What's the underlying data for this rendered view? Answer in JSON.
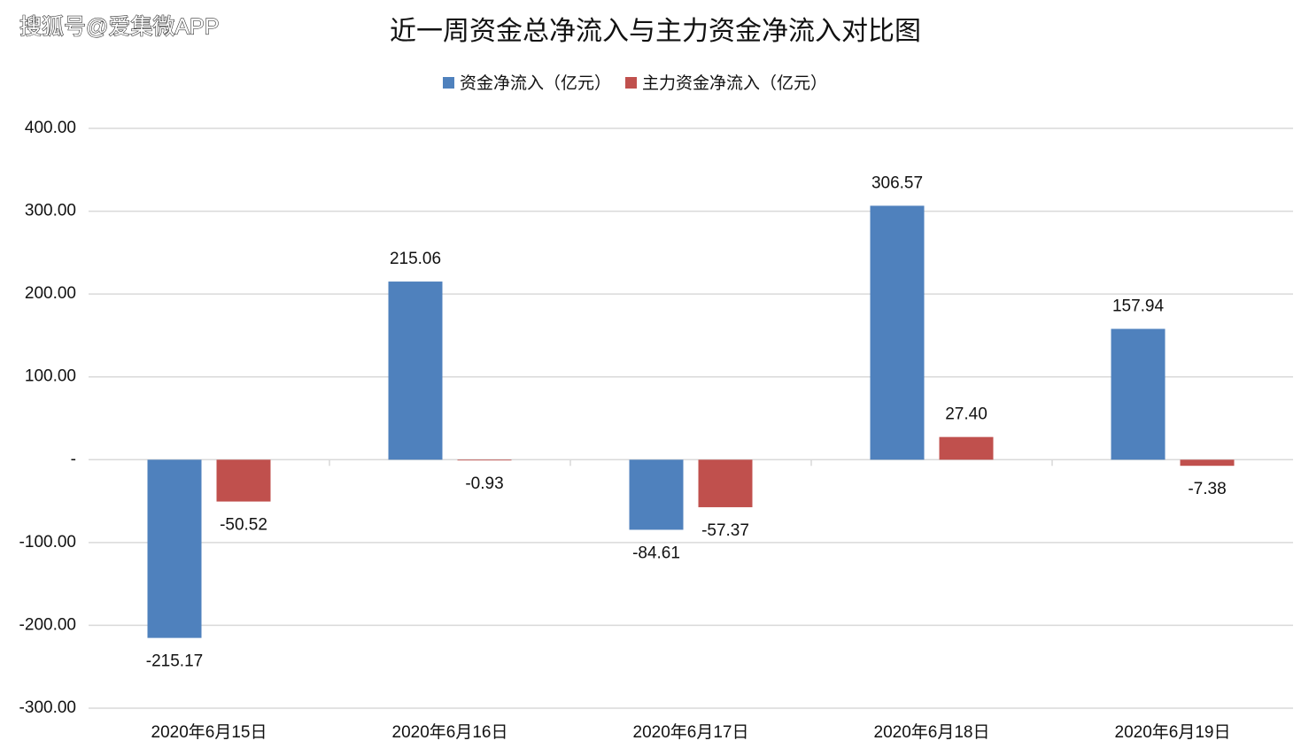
{
  "chart_data": {
    "type": "bar",
    "watermark": "搜狐号@爱集微APP",
    "title": "近一周资金总净流入与主力资金净流入对比图",
    "categories": [
      "2020年6月15日",
      "2020年6月16日",
      "2020年6月17日",
      "2020年6月18日",
      "2020年6月19日"
    ],
    "series": [
      {
        "name": "资金净流入（亿元）",
        "color": "#4f81bd",
        "values": [
          -215.17,
          215.06,
          -84.61,
          306.57,
          157.94
        ],
        "value_labels": [
          "-215.17",
          "215.06",
          "-84.61",
          "306.57",
          "157.94"
        ]
      },
      {
        "name": "主力资金净流入（亿元）",
        "color": "#c0504d",
        "values": [
          -50.52,
          -0.93,
          -57.37,
          27.4,
          -7.38
        ],
        "value_labels": [
          "-50.52",
          "-0.93",
          "-57.37",
          "27.40",
          "-7.38"
        ]
      }
    ],
    "ylim": [
      -300,
      400
    ],
    "yticks": [
      {
        "value": -300,
        "label": "-300.00"
      },
      {
        "value": -200,
        "label": "-200.00"
      },
      {
        "value": -100,
        "label": "-100.00"
      },
      {
        "value": 0,
        "label": "-"
      },
      {
        "value": 100,
        "label": "100.00"
      },
      {
        "value": 200,
        "label": "200.00"
      },
      {
        "value": 300,
        "label": "300.00"
      },
      {
        "value": 400,
        "label": "400.00"
      }
    ],
    "grid": true,
    "legend": "top"
  }
}
